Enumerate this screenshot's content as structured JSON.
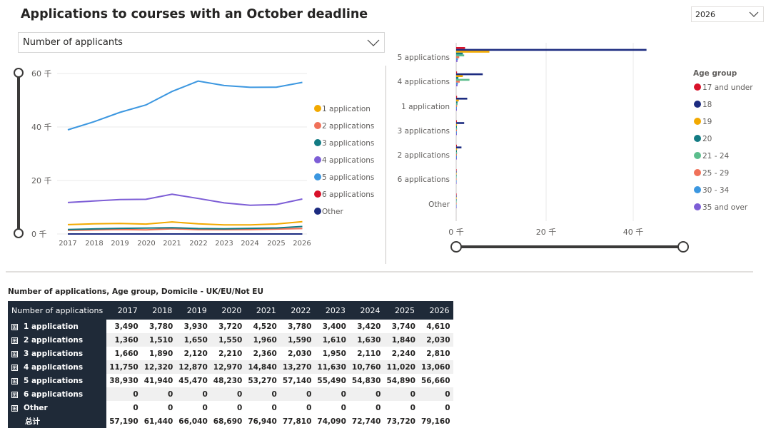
{
  "header": {
    "title": "Applications to courses with an October deadline"
  },
  "year_filter": {
    "value": "2026"
  },
  "metric_filter": {
    "value": "Number of applicants"
  },
  "line_chart": {
    "y_ticks": [
      "0 千",
      "20 千",
      "40 千",
      "60 千"
    ],
    "x_ticks": [
      "2017",
      "2018",
      "2019",
      "2020",
      "2021",
      "2022",
      "2023",
      "2024",
      "2025",
      "2026"
    ],
    "legend": [
      "1 application",
      "2 applications",
      "3 applications",
      "4 applications",
      "5 applications",
      "6 applications",
      "Other"
    ]
  },
  "bar_chart": {
    "categories": [
      "5 applications",
      "4 applications",
      "1 application",
      "3 applications",
      "2 applications",
      "6 applications",
      "Other"
    ],
    "x_ticks": [
      "0 千",
      "20 千",
      "40 千"
    ],
    "legend_title": "Age group",
    "legend": [
      "17 and under",
      "18",
      "19",
      "20",
      "21 - 24",
      "25 - 29",
      "30 - 34",
      "35 and over"
    ]
  },
  "chart_data": [
    {
      "type": "line",
      "title": "",
      "x": [
        2017,
        2018,
        2019,
        2020,
        2021,
        2022,
        2023,
        2024,
        2025,
        2026
      ],
      "ylim": [
        0,
        60000
      ],
      "series": [
        {
          "name": "1 application",
          "color": "#f2a900",
          "values": [
            3490,
            3780,
            3930,
            3720,
            4520,
            3780,
            3400,
            3420,
            3740,
            4610
          ]
        },
        {
          "name": "2 applications",
          "color": "#f07159",
          "values": [
            1360,
            1510,
            1650,
            1550,
            1960,
            1590,
            1610,
            1630,
            1840,
            2030
          ]
        },
        {
          "name": "3 applications",
          "color": "#137b83",
          "values": [
            1660,
            1890,
            2120,
            2210,
            2360,
            2030,
            1950,
            2110,
            2240,
            2810
          ]
        },
        {
          "name": "4 applications",
          "color": "#7d5ed6",
          "values": [
            11750,
            12320,
            12870,
            12970,
            14840,
            13270,
            11630,
            10760,
            11020,
            13060
          ]
        },
        {
          "name": "5 applications",
          "color": "#3c97e0",
          "values": [
            38930,
            41940,
            45470,
            48230,
            53270,
            57140,
            55490,
            54830,
            54890,
            56660
          ]
        },
        {
          "name": "6 applications",
          "color": "#d8122a",
          "values": [
            0,
            0,
            0,
            0,
            0,
            0,
            0,
            0,
            0,
            0
          ]
        },
        {
          "name": "Other",
          "color": "#1c2b80",
          "values": [
            0,
            0,
            0,
            0,
            0,
            0,
            0,
            0,
            0,
            0
          ]
        }
      ]
    },
    {
      "type": "bar",
      "orientation": "horizontal",
      "title": "",
      "categories": [
        "5 applications",
        "4 applications",
        "1 application",
        "3 applications",
        "2 applications",
        "6 applications",
        "Other"
      ],
      "xlim": [
        0,
        50000
      ],
      "series": [
        {
          "name": "17 and under",
          "color": "#d8122a",
          "values": [
            2000,
            200,
            200,
            100,
            100,
            0,
            0
          ]
        },
        {
          "name": "18",
          "color": "#1c2b80",
          "values": [
            43000,
            6000,
            2500,
            1800,
            1200,
            0,
            0
          ]
        },
        {
          "name": "19",
          "color": "#f2a900",
          "values": [
            7500,
            1500,
            600,
            200,
            200,
            0,
            0
          ]
        },
        {
          "name": "20",
          "color": "#137b83",
          "values": [
            1500,
            500,
            300,
            100,
            100,
            0,
            0
          ]
        },
        {
          "name": "21 - 24",
          "color": "#5bbd8c",
          "values": [
            1800,
            3000,
            300,
            200,
            200,
            0,
            0
          ]
        },
        {
          "name": "25 - 29",
          "color": "#f07159",
          "values": [
            700,
            800,
            200,
            100,
            100,
            0,
            0
          ]
        },
        {
          "name": "30 - 34",
          "color": "#3c97e0",
          "values": [
            400,
            400,
            100,
            100,
            100,
            0,
            0
          ]
        },
        {
          "name": "35 and over",
          "color": "#7d5ed6",
          "values": [
            300,
            300,
            100,
            100,
            100,
            0,
            0
          ]
        }
      ]
    }
  ],
  "table": {
    "title": "Number of applications, Age group, Domicile - UK/EU/Not EU",
    "corner_header": "Number of applications",
    "expand_symbol": "⊞",
    "columns": [
      "2017",
      "2018",
      "2019",
      "2020",
      "2021",
      "2022",
      "2023",
      "2024",
      "2025",
      "2026"
    ],
    "rows": [
      {
        "label": "1 application",
        "values": [
          "3,490",
          "3,780",
          "3,930",
          "3,720",
          "4,520",
          "3,780",
          "3,400",
          "3,420",
          "3,740",
          "4,610"
        ]
      },
      {
        "label": "2 applications",
        "values": [
          "1,360",
          "1,510",
          "1,650",
          "1,550",
          "1,960",
          "1,590",
          "1,610",
          "1,630",
          "1,840",
          "2,030"
        ]
      },
      {
        "label": "3 applications",
        "values": [
          "1,660",
          "1,890",
          "2,120",
          "2,210",
          "2,360",
          "2,030",
          "1,950",
          "2,110",
          "2,240",
          "2,810"
        ]
      },
      {
        "label": "4 applications",
        "values": [
          "11,750",
          "12,320",
          "12,870",
          "12,970",
          "14,840",
          "13,270",
          "11,630",
          "10,760",
          "11,020",
          "13,060"
        ]
      },
      {
        "label": "5 applications",
        "values": [
          "38,930",
          "41,940",
          "45,470",
          "48,230",
          "53,270",
          "57,140",
          "55,490",
          "54,830",
          "54,890",
          "56,660"
        ]
      },
      {
        "label": "6 applications",
        "values": [
          "0",
          "0",
          "0",
          "0",
          "0",
          "0",
          "0",
          "0",
          "0",
          "0"
        ]
      },
      {
        "label": "Other",
        "values": [
          "0",
          "0",
          "0",
          "0",
          "0",
          "0",
          "0",
          "0",
          "0",
          "0"
        ]
      }
    ],
    "total": {
      "label": "总计",
      "values": [
        "57,190",
        "61,440",
        "66,040",
        "68,690",
        "76,940",
        "77,810",
        "74,090",
        "72,740",
        "73,720",
        "79,160"
      ]
    }
  }
}
